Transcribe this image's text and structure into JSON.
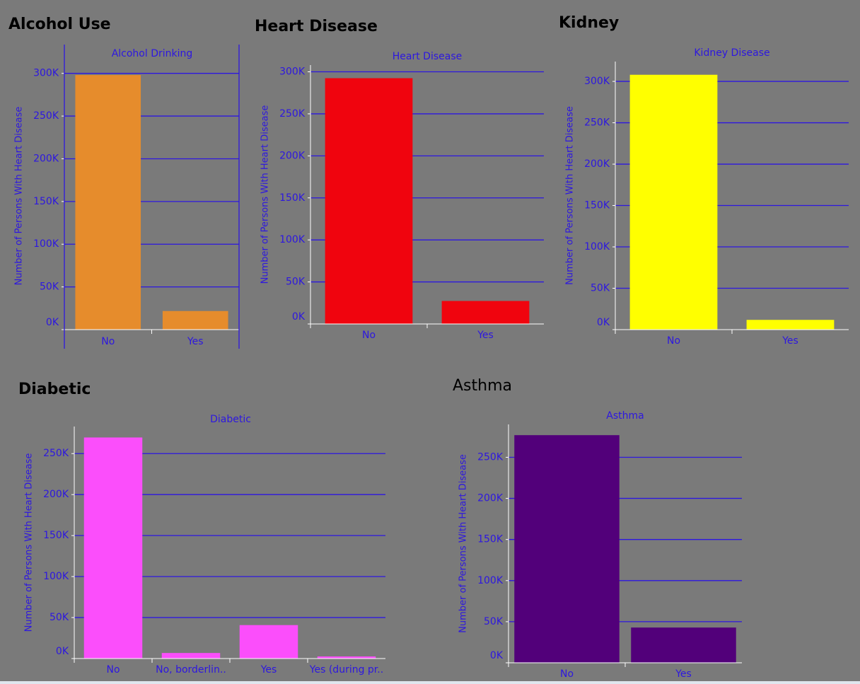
{
  "chart_data": [
    {
      "type": "bar",
      "title": "Alcohol Use",
      "subtitle": "Alcohol Drinking",
      "y_label": "Number of Persons With Heart Disease",
      "categories": [
        "No",
        "Yes"
      ],
      "values": [
        298018,
        21777
      ],
      "color": "#e68c2c",
      "ylim": [
        0,
        313000
      ],
      "yticks": [
        {
          "value": 0,
          "label": "0K"
        },
        {
          "value": 50000,
          "label": "50K"
        },
        {
          "value": 100000,
          "label": "100K"
        },
        {
          "value": 150000,
          "label": "150K"
        },
        {
          "value": 200000,
          "label": "200K"
        },
        {
          "value": 250000,
          "label": "250K"
        },
        {
          "value": 300000,
          "label": "300K"
        }
      ],
      "grid": true
    },
    {
      "type": "bar",
      "title": "Heart Disease",
      "subtitle": "Heart Disease",
      "y_label": "Number of Persons With Heart Disease",
      "categories": [
        "No",
        "Yes"
      ],
      "values": [
        292422,
        27373
      ],
      "color": "#f0040e",
      "ylim": [
        0,
        308000
      ],
      "yticks": [
        {
          "value": 0,
          "label": "0K"
        },
        {
          "value": 50000,
          "label": "50K"
        },
        {
          "value": 100000,
          "label": "100K"
        },
        {
          "value": 150000,
          "label": "150K"
        },
        {
          "value": 200000,
          "label": "200K"
        },
        {
          "value": 250000,
          "label": "250K"
        },
        {
          "value": 300000,
          "label": "300K"
        }
      ],
      "grid": true
    },
    {
      "type": "bar",
      "title": "Kidney",
      "subtitle": "Kidney Disease",
      "y_label": "Number of Persons With Heart Disease",
      "categories": [
        "No",
        "Yes"
      ],
      "values": [
        308016,
        11779
      ],
      "color": "#ffff00",
      "ylim": [
        0,
        324000
      ],
      "yticks": [
        {
          "value": 0,
          "label": "0K"
        },
        {
          "value": 50000,
          "label": "50K"
        },
        {
          "value": 100000,
          "label": "100K"
        },
        {
          "value": 150000,
          "label": "150K"
        },
        {
          "value": 200000,
          "label": "200K"
        },
        {
          "value": 250000,
          "label": "250K"
        },
        {
          "value": 300000,
          "label": "300K"
        }
      ],
      "grid": true
    },
    {
      "type": "bar",
      "title": "Diabetic",
      "subtitle": "Diabetic",
      "y_label": "Number of Persons With Heart Disease",
      "categories": [
        "No",
        "No, borderlin..",
        "Yes",
        "Yes (during pr.."
      ],
      "values": [
        269653,
        6781,
        40802,
        2559
      ],
      "color": "#fb4efb",
      "ylim": [
        0,
        283000
      ],
      "yticks": [
        {
          "value": 0,
          "label": "0K"
        },
        {
          "value": 50000,
          "label": "50K"
        },
        {
          "value": 100000,
          "label": "100K"
        },
        {
          "value": 150000,
          "label": "150K"
        },
        {
          "value": 200000,
          "label": "200K"
        },
        {
          "value": 250000,
          "label": "250K"
        }
      ],
      "grid": true
    },
    {
      "type": "bar",
      "title": "Asthma",
      "subtitle": "Asthma",
      "y_label": "Number of Persons With Heart Disease",
      "categories": [
        "No",
        "Yes"
      ],
      "values": [
        276923,
        42872
      ],
      "color": "#52007a",
      "ylim": [
        0,
        290000
      ],
      "yticks": [
        {
          "value": 0,
          "label": "0K"
        },
        {
          "value": 50000,
          "label": "50K"
        },
        {
          "value": 100000,
          "label": "100K"
        },
        {
          "value": 150000,
          "label": "150K"
        },
        {
          "value": 200000,
          "label": "200K"
        },
        {
          "value": 250000,
          "label": "250K"
        }
      ],
      "grid": true
    }
  ]
}
